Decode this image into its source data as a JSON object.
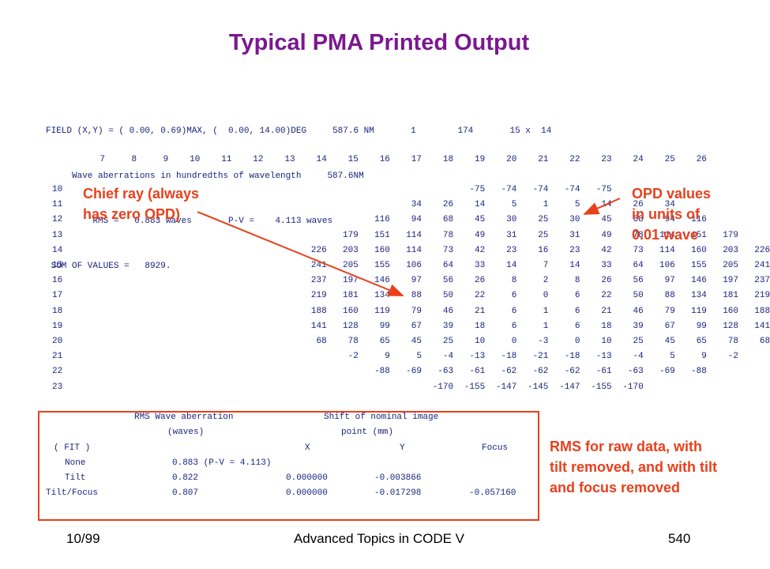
{
  "title": "Typical PMA Printed Output",
  "header_lines": [
    "FIELD (X,Y) = ( 0.00, 0.69)MAX, (  0.00, 14.00)DEG     587.6 NM       1        174       15 x  14",
    "     Wave aberrations in hundredths of wavelength     587.6NM",
    "         RMS =   0.883 waves       P-V =    4.113 waves",
    " SUM OF VALUES =   8929."
  ],
  "columns": [
    "7",
    "8",
    "9",
    "10",
    "11",
    "12",
    "13",
    "14",
    "15",
    "16",
    "17",
    "18",
    "19",
    "20",
    "21",
    "22",
    "23",
    "24",
    "25",
    "26"
  ],
  "rows": [
    {
      "label": "10",
      "start": 12,
      "values": [
        "-75",
        "-74",
        "-74",
        "-74",
        "-75"
      ]
    },
    {
      "label": "11",
      "start": 10,
      "values": [
        "34",
        "26",
        "14",
        "5",
        "1",
        "5",
        "14",
        "26",
        "34"
      ]
    },
    {
      "label": "12",
      "start": 9,
      "values": [
        "116",
        "94",
        "68",
        "45",
        "30",
        "25",
        "30",
        "45",
        "68",
        "94",
        "116"
      ]
    },
    {
      "label": "13",
      "start": 8,
      "values": [
        "179",
        "151",
        "114",
        "78",
        "49",
        "31",
        "25",
        "31",
        "49",
        "78",
        "114",
        "151",
        "179"
      ]
    },
    {
      "label": "14",
      "start": 7,
      "values": [
        "226",
        "203",
        "160",
        "114",
        "73",
        "42",
        "23",
        "16",
        "23",
        "42",
        "73",
        "114",
        "160",
        "203",
        "226"
      ]
    },
    {
      "label": "15",
      "start": 7,
      "values": [
        "241",
        "205",
        "155",
        "106",
        "64",
        "33",
        "14",
        "7",
        "14",
        "33",
        "64",
        "106",
        "155",
        "205",
        "241"
      ]
    },
    {
      "label": "16",
      "start": 7,
      "values": [
        "237",
        "197",
        "146",
        "97",
        "56",
        "26",
        "8",
        "2",
        "8",
        "26",
        "56",
        "97",
        "146",
        "197",
        "237"
      ]
    },
    {
      "label": "17",
      "start": 7,
      "values": [
        "219",
        "181",
        "134",
        "88",
        "50",
        "22",
        "6",
        "0",
        "6",
        "22",
        "50",
        "88",
        "134",
        "181",
        "219"
      ]
    },
    {
      "label": "18",
      "start": 7,
      "values": [
        "188",
        "160",
        "119",
        "79",
        "46",
        "21",
        "6",
        "1",
        "6",
        "21",
        "46",
        "79",
        "119",
        "160",
        "188"
      ]
    },
    {
      "label": "19",
      "start": 7,
      "values": [
        "141",
        "128",
        "99",
        "67",
        "39",
        "18",
        "6",
        "1",
        "6",
        "18",
        "39",
        "67",
        "99",
        "128",
        "141"
      ]
    },
    {
      "label": "20",
      "start": 7,
      "values": [
        "68",
        "78",
        "65",
        "45",
        "25",
        "10",
        "0",
        "-3",
        "0",
        "10",
        "25",
        "45",
        "65",
        "78",
        "68"
      ]
    },
    {
      "label": "21",
      "start": 8,
      "values": [
        "-2",
        "9",
        "5",
        "-4",
        "-13",
        "-18",
        "-21",
        "-18",
        "-13",
        "-4",
        "5",
        "9",
        "-2"
      ]
    },
    {
      "label": "22",
      "start": 9,
      "values": [
        "-88",
        "-69",
        "-63",
        "-61",
        "-62",
        "-62",
        "-62",
        "-61",
        "-63",
        "-69",
        "-88"
      ]
    },
    {
      "label": "23",
      "start": 11,
      "values": [
        "-170",
        "-155",
        "-147",
        "-145",
        "-147",
        "-155",
        "-170"
      ]
    }
  ],
  "annotations": {
    "chief_ray": [
      "Chief ray (always",
      "has zero OPD)"
    ],
    "opd": [
      "OPD values",
      "in units of",
      "0.01 wave"
    ],
    "rms": [
      "RMS for raw data, with",
      "tilt removed, and with tilt",
      "and focus removed"
    ]
  },
  "rms_table": {
    "col1_line1": "RMS Wave aberration",
    "col1_line2": "(waves)",
    "col2_line1": "Shift of nominal image",
    "col2_line2": "point (mm)",
    "fit_label": "( FIT )",
    "x_label": "X",
    "y_label": "Y",
    "focus_label": "Focus",
    "rows": [
      {
        "name": "None",
        "rms": "0.883 (P-V = 4.113)",
        "x": "",
        "y": "",
        "focus": ""
      },
      {
        "name": "Tilt",
        "rms": "0.822",
        "x": "0.000000",
        "y": "-0.003866",
        "focus": ""
      },
      {
        "name": "Tilt/Focus",
        "rms": "0.807",
        "x": "0.000000",
        "y": "-0.017298",
        "focus": "-0.057160"
      }
    ]
  },
  "footer": {
    "date": "10/99",
    "course": "Advanced Topics in CODE V",
    "page": "540"
  },
  "colors": {
    "title": "#7a1890",
    "annotation": "#e8401c",
    "text": "#1a237e"
  }
}
